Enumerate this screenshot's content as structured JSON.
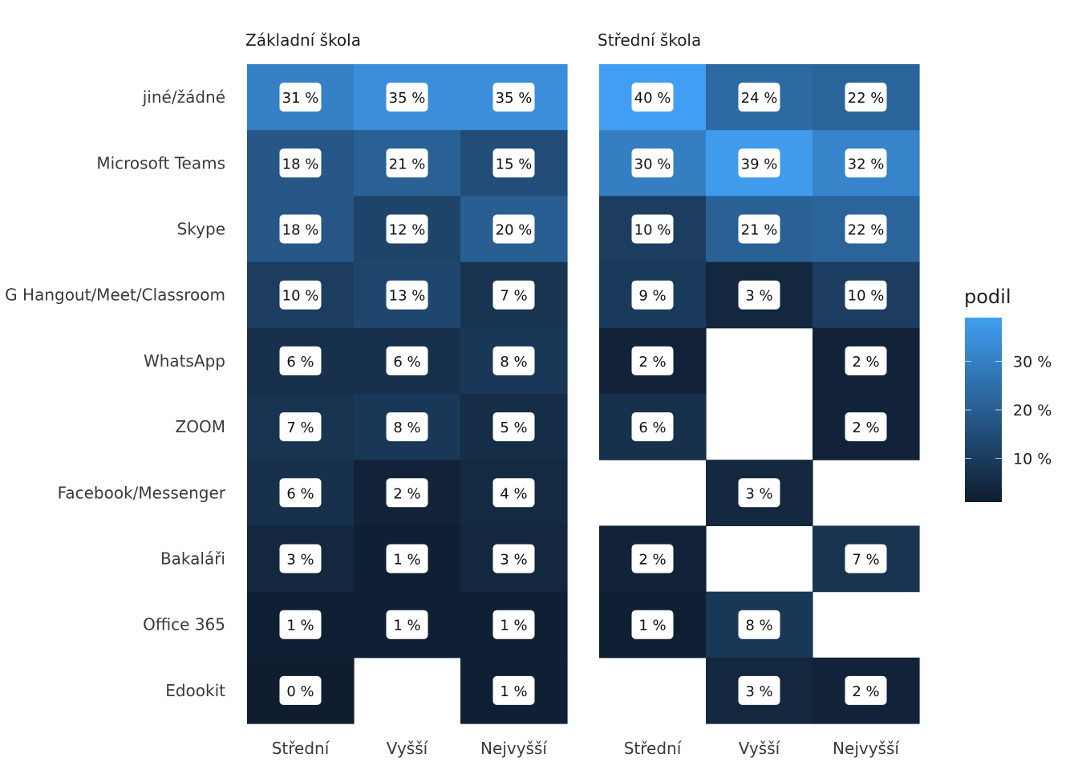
{
  "chart_data": {
    "type": "heatmap",
    "rows": [
      "jiné/žádné",
      "Microsoft Teams",
      "Skype",
      "G Hangout/Meet/Classroom",
      "WhatsApp",
      "ZOOM",
      "Facebook/Messenger",
      "Bakaláři",
      "Office 365",
      "Edookit"
    ],
    "columns": [
      "Střední",
      "Vyšší",
      "Nejvyšší"
    ],
    "facets": [
      {
        "title": "Základní škola",
        "values": [
          [
            31,
            35,
            35
          ],
          [
            18,
            21,
            15
          ],
          [
            18,
            12,
            20
          ],
          [
            10,
            13,
            7
          ],
          [
            6,
            6,
            8
          ],
          [
            7,
            8,
            5
          ],
          [
            6,
            2,
            4
          ],
          [
            3,
            1,
            3
          ],
          [
            1,
            1,
            1
          ],
          [
            0,
            null,
            1
          ]
        ]
      },
      {
        "title": "Střední škola",
        "values": [
          [
            40,
            24,
            22
          ],
          [
            30,
            39,
            32
          ],
          [
            10,
            21,
            22
          ],
          [
            9,
            3,
            10
          ],
          [
            2,
            null,
            2
          ],
          [
            6,
            null,
            2
          ],
          [
            null,
            3,
            null
          ],
          [
            2,
            null,
            7
          ],
          [
            1,
            8,
            null
          ],
          [
            null,
            3,
            2
          ]
        ]
      }
    ],
    "value_suffix": " %",
    "legend": {
      "title": "podil",
      "ticks": [
        10,
        20,
        30
      ],
      "tick_labels": [
        "10 %",
        "20 %",
        "30 %"
      ],
      "position": "right",
      "range": [
        0,
        40
      ]
    },
    "colors": {
      "low": "#0f1d2f",
      "high": "#419ef2",
      "label_bg": "#ffffff"
    }
  }
}
